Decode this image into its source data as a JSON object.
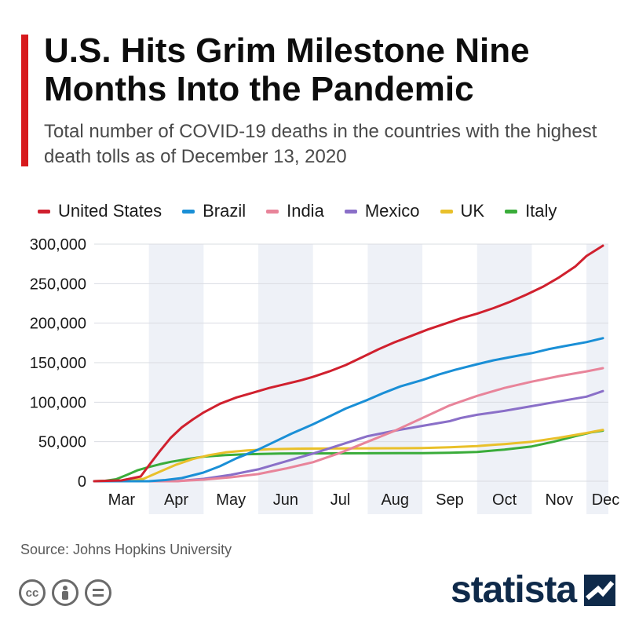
{
  "header": {
    "title": "U.S. Hits Grim Milestone Nine Months Into the Pandemic",
    "subtitle": "Total number of COVID-19 deaths in the countries with the highest death tolls as of December 13, 2020"
  },
  "footer": {
    "source": "Source: Johns Hopkins University",
    "brand": "statista",
    "license_icons": [
      "creative-commons-icon",
      "attribution-icon",
      "no-derivatives-icon"
    ]
  },
  "colors": {
    "accent": "#d7191c",
    "band": "#eef1f7",
    "grid": "#d9dce2",
    "brand": "#0f2a4a"
  },
  "chart_data": {
    "type": "line",
    "x_unit": "month",
    "x_note": "x values are positions along the month axis (0 = start of March)",
    "months": [
      "Mar",
      "Apr",
      "May",
      "Jun",
      "Jul",
      "Aug",
      "Sep",
      "Oct",
      "Nov",
      "Dec"
    ],
    "ylim": [
      0,
      300000
    ],
    "yticks": [
      0,
      50000,
      100000,
      150000,
      200000,
      250000,
      300000
    ],
    "ytick_labels": [
      "0",
      "50,000",
      "100,000",
      "150,000",
      "200,000",
      "250,000",
      "300,000"
    ],
    "grid": true,
    "legend_position": "top",
    "series": [
      {
        "name": "United States",
        "color": "#d0202e",
        "points": [
          [
            0,
            0
          ],
          [
            0.5,
            1000
          ],
          [
            0.85,
            6000
          ],
          [
            1.0,
            20000
          ],
          [
            1.2,
            38000
          ],
          [
            1.4,
            55000
          ],
          [
            1.6,
            68000
          ],
          [
            1.8,
            78000
          ],
          [
            2.0,
            87000
          ],
          [
            2.3,
            98000
          ],
          [
            2.6,
            106000
          ],
          [
            2.9,
            112000
          ],
          [
            3.2,
            118000
          ],
          [
            3.5,
            123000
          ],
          [
            3.8,
            128000
          ],
          [
            4.0,
            132000
          ],
          [
            4.3,
            139000
          ],
          [
            4.6,
            147000
          ],
          [
            4.9,
            157000
          ],
          [
            5.2,
            167000
          ],
          [
            5.5,
            176000
          ],
          [
            5.8,
            184000
          ],
          [
            6.1,
            192000
          ],
          [
            6.4,
            199000
          ],
          [
            6.7,
            206000
          ],
          [
            7.0,
            212000
          ],
          [
            7.3,
            219000
          ],
          [
            7.6,
            227000
          ],
          [
            7.9,
            236000
          ],
          [
            8.2,
            246000
          ],
          [
            8.5,
            258000
          ],
          [
            8.8,
            272000
          ],
          [
            9.0,
            285000
          ],
          [
            9.3,
            298000
          ]
        ]
      },
      {
        "name": "Brazil",
        "color": "#1a8fd6",
        "points": [
          [
            0,
            0
          ],
          [
            1.0,
            0
          ],
          [
            1.3,
            1500
          ],
          [
            1.6,
            4000
          ],
          [
            2.0,
            11000
          ],
          [
            2.3,
            19000
          ],
          [
            2.6,
            29000
          ],
          [
            3.0,
            40000
          ],
          [
            3.3,
            50000
          ],
          [
            3.6,
            60000
          ],
          [
            4.0,
            72000
          ],
          [
            4.3,
            82000
          ],
          [
            4.6,
            92000
          ],
          [
            5.0,
            103000
          ],
          [
            5.3,
            112000
          ],
          [
            5.6,
            120000
          ],
          [
            6.0,
            128000
          ],
          [
            6.3,
            135000
          ],
          [
            6.6,
            141000
          ],
          [
            7.0,
            148000
          ],
          [
            7.3,
            153000
          ],
          [
            7.6,
            157000
          ],
          [
            8.0,
            162000
          ],
          [
            8.3,
            167000
          ],
          [
            8.6,
            171000
          ],
          [
            9.0,
            176000
          ],
          [
            9.3,
            181000
          ]
        ]
      },
      {
        "name": "India",
        "color": "#e8849a",
        "points": [
          [
            0,
            0
          ],
          [
            1.5,
            0
          ],
          [
            2.0,
            2000
          ],
          [
            2.5,
            5000
          ],
          [
            3.0,
            9000
          ],
          [
            3.5,
            16000
          ],
          [
            4.0,
            24000
          ],
          [
            4.5,
            36000
          ],
          [
            5.0,
            50000
          ],
          [
            5.5,
            64000
          ],
          [
            6.0,
            80000
          ],
          [
            6.5,
            96000
          ],
          [
            7.0,
            108000
          ],
          [
            7.5,
            118000
          ],
          [
            8.0,
            126000
          ],
          [
            8.5,
            133000
          ],
          [
            9.0,
            139000
          ],
          [
            9.3,
            143000
          ]
        ]
      },
      {
        "name": "Mexico",
        "color": "#8a6fc8",
        "points": [
          [
            0,
            0
          ],
          [
            1.5,
            0
          ],
          [
            2.0,
            3000
          ],
          [
            2.5,
            8000
          ],
          [
            3.0,
            15000
          ],
          [
            3.5,
            25000
          ],
          [
            4.0,
            35000
          ],
          [
            4.5,
            46000
          ],
          [
            5.0,
            57000
          ],
          [
            5.5,
            64000
          ],
          [
            6.0,
            70000
          ],
          [
            6.5,
            76000
          ],
          [
            6.7,
            80000
          ],
          [
            7.0,
            84000
          ],
          [
            7.5,
            89000
          ],
          [
            8.0,
            95000
          ],
          [
            8.5,
            101000
          ],
          [
            9.0,
            107000
          ],
          [
            9.3,
            114000
          ]
        ]
      },
      {
        "name": "UK",
        "color": "#e9c02a",
        "points": [
          [
            0,
            0
          ],
          [
            0.6,
            500
          ],
          [
            0.9,
            3000
          ],
          [
            1.2,
            12000
          ],
          [
            1.5,
            21000
          ],
          [
            1.8,
            28000
          ],
          [
            2.1,
            33000
          ],
          [
            2.4,
            36500
          ],
          [
            2.8,
            39000
          ],
          [
            3.2,
            40500
          ],
          [
            3.8,
            41200
          ],
          [
            4.5,
            41500
          ],
          [
            5.5,
            41700
          ],
          [
            6.0,
            42000
          ],
          [
            6.5,
            43000
          ],
          [
            7.0,
            44500
          ],
          [
            7.5,
            47000
          ],
          [
            8.0,
            50000
          ],
          [
            8.5,
            55000
          ],
          [
            9.0,
            61000
          ],
          [
            9.3,
            65000
          ]
        ]
      },
      {
        "name": "Italy",
        "color": "#3aac3a",
        "points": [
          [
            0,
            0
          ],
          [
            0.2,
            500
          ],
          [
            0.4,
            2500
          ],
          [
            0.6,
            8000
          ],
          [
            0.8,
            14000
          ],
          [
            1.0,
            18000
          ],
          [
            1.2,
            21500
          ],
          [
            1.4,
            24500
          ],
          [
            1.7,
            28000
          ],
          [
            2.0,
            31000
          ],
          [
            2.4,
            33000
          ],
          [
            2.8,
            34200
          ],
          [
            3.4,
            35000
          ],
          [
            4.0,
            35200
          ],
          [
            5.0,
            35400
          ],
          [
            6.0,
            35600
          ],
          [
            6.5,
            36000
          ],
          [
            7.0,
            37000
          ],
          [
            7.5,
            40000
          ],
          [
            8.0,
            44000
          ],
          [
            8.4,
            50000
          ],
          [
            8.8,
            57000
          ],
          [
            9.1,
            62000
          ],
          [
            9.3,
            64000
          ]
        ]
      }
    ]
  }
}
